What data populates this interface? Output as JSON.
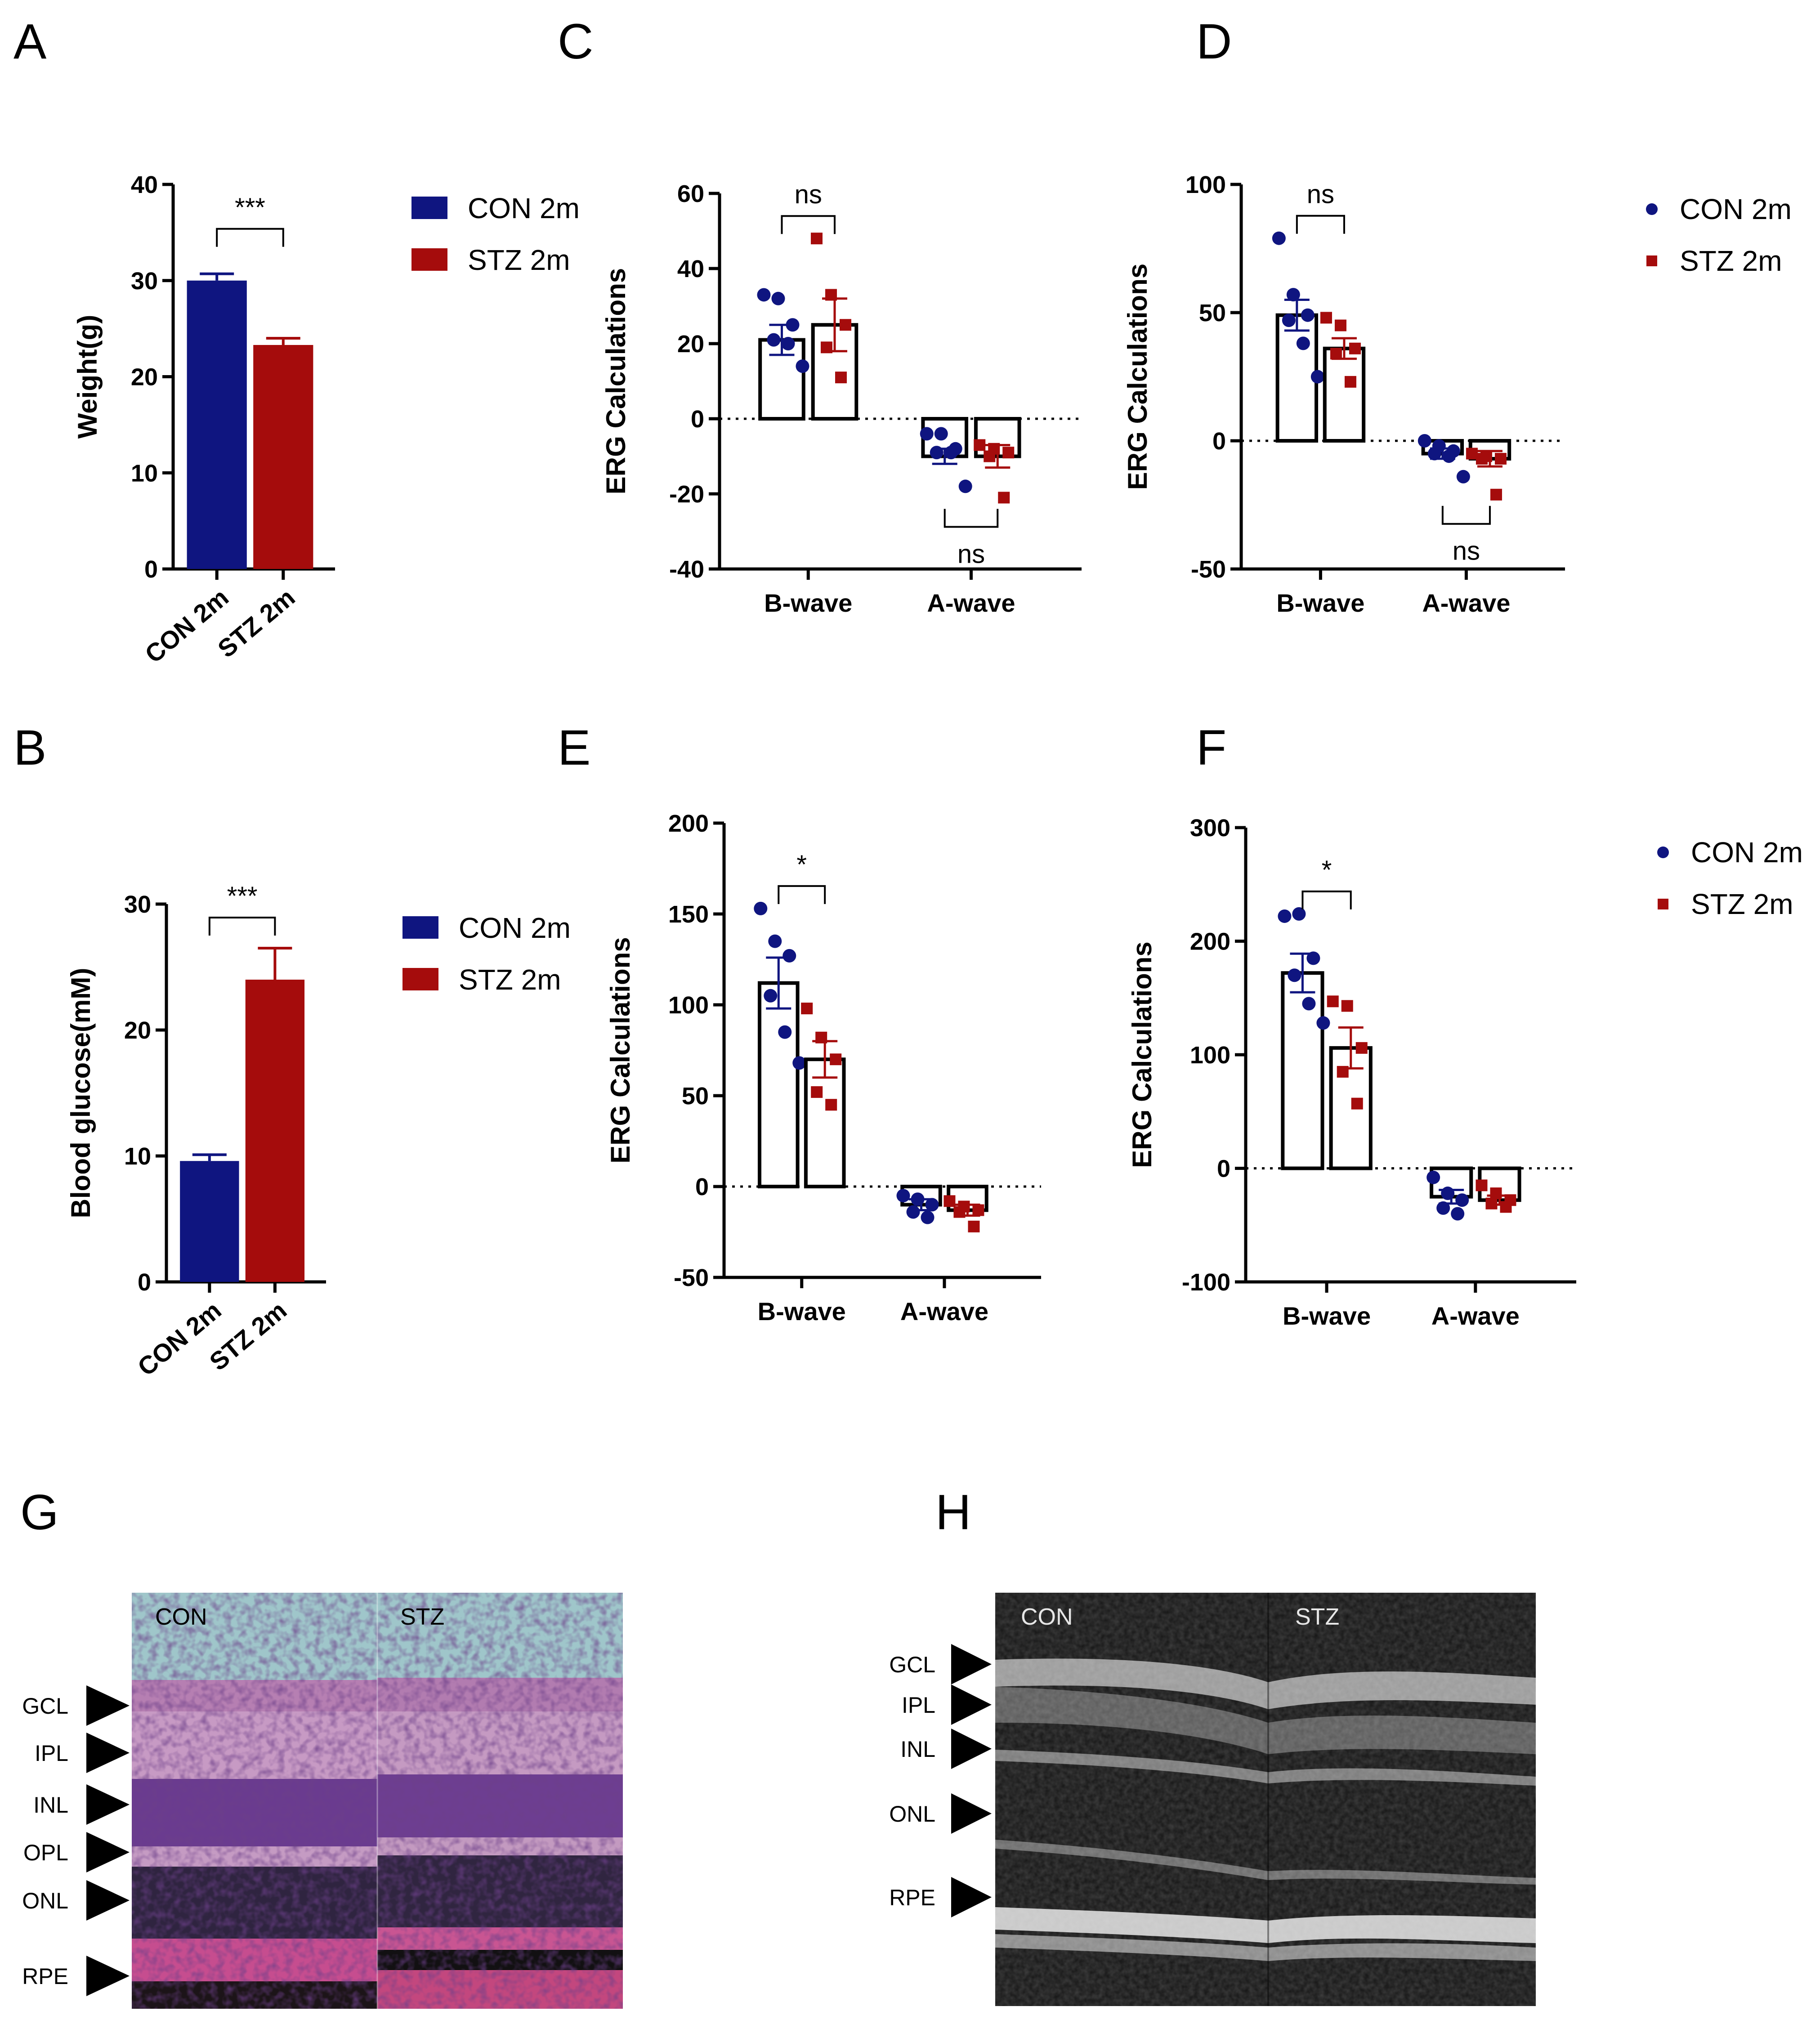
{
  "colors": {
    "con": "#0f1580",
    "stz": "#a50c0c",
    "axis": "#000000"
  },
  "legend_labels": {
    "con": "CON 2m",
    "stz": "STZ 2m"
  },
  "chart_data": [
    {
      "panel": "A",
      "type": "bar",
      "ylabel": "Weight(g)",
      "ylim": [
        0,
        40
      ],
      "yticks": [
        "0",
        "10",
        "20",
        "30",
        "40"
      ],
      "tick_values": [
        0,
        10,
        20,
        30,
        40
      ],
      "categories": [
        "CON 2m",
        "STZ 2m"
      ],
      "values": [
        30.0,
        23.3
      ],
      "errors": [
        0.7,
        0.7
      ],
      "significance": "***",
      "legend": [
        "CON 2m",
        "STZ 2m"
      ]
    },
    {
      "panel": "B",
      "type": "bar",
      "ylabel": "Blood glucose(mM)",
      "ylim": [
        0,
        30
      ],
      "yticks": [
        "0",
        "10",
        "20",
        "30"
      ],
      "tick_values": [
        0,
        10,
        20,
        30
      ],
      "categories": [
        "CON 2m",
        "STZ 2m"
      ],
      "values": [
        9.6,
        24.0
      ],
      "errors": [
        0.5,
        2.5
      ],
      "significance": "***",
      "legend": [
        "CON 2m",
        "STZ 2m"
      ]
    },
    {
      "panel": "C",
      "type": "bar",
      "ylabel": "ERG Calculations",
      "ylim": [
        -40,
        60
      ],
      "yticks": [
        "-40",
        "-20",
        "0",
        "20",
        "40",
        "60"
      ],
      "tick_values": [
        -40,
        -20,
        0,
        20,
        40,
        60
      ],
      "groups": [
        "B-wave",
        "A-wave"
      ],
      "series": [
        {
          "name": "CON 2m",
          "means": [
            21,
            -10
          ],
          "errors": [
            4,
            2
          ],
          "points": [
            [
              33,
              32,
              25,
              21,
              20,
              14
            ],
            [
              -4,
              -4,
              -8,
              -9,
              -9,
              -18
            ]
          ]
        },
        {
          "name": "STZ 2m",
          "means": [
            25,
            -10
          ],
          "errors": [
            7,
            3
          ],
          "points": [
            [
              48,
              33,
              25,
              19,
              11
            ],
            [
              -7,
              -8,
              -9,
              -10,
              -21
            ]
          ]
        }
      ],
      "significance": [
        "ns",
        "ns"
      ],
      "legend": []
    },
    {
      "panel": "D",
      "type": "bar",
      "ylabel": "ERG Calculations",
      "ylim": [
        -50,
        100
      ],
      "yticks": [
        "-50",
        "0",
        "50",
        "100"
      ],
      "tick_values": [
        -50,
        0,
        50,
        100
      ],
      "groups": [
        "B-wave",
        "A-wave"
      ],
      "series": [
        {
          "name": "CON 2m",
          "means": [
            49,
            -5
          ],
          "errors": [
            6,
            2
          ],
          "points": [
            [
              79,
              57,
              49,
              47,
              38,
              25
            ],
            [
              0,
              -2,
              -4,
              -5,
              -6,
              -14
            ]
          ]
        },
        {
          "name": "STZ 2m",
          "means": [
            36,
            -7
          ],
          "errors": [
            4,
            3
          ],
          "points": [
            [
              48,
              45,
              36,
              34,
              23
            ],
            [
              -5,
              -6,
              -7,
              -7,
              -21
            ]
          ]
        }
      ],
      "significance": [
        "ns",
        "ns"
      ],
      "legend": [
        "CON 2m",
        "STZ 2m"
      ]
    },
    {
      "panel": "E",
      "type": "bar",
      "ylabel": "ERG Calculations",
      "ylim": [
        -50,
        200
      ],
      "yticks": [
        "-50",
        "0",
        "50",
        "100",
        "150",
        "200"
      ],
      "tick_values": [
        -50,
        0,
        50,
        100,
        150,
        200
      ],
      "groups": [
        "B-wave",
        "A-wave"
      ],
      "series": [
        {
          "name": "CON 2m",
          "means": [
            112,
            -10
          ],
          "errors": [
            14,
            3
          ],
          "points": [
            [
              153,
              135,
              127,
              105,
              85,
              68
            ],
            [
              -5,
              -7,
              -10,
              -14,
              -17
            ]
          ]
        },
        {
          "name": "STZ 2m",
          "means": [
            70,
            -13
          ],
          "errors": [
            10,
            3
          ],
          "points": [
            [
              98,
              82,
              70,
              52,
              45
            ],
            [
              -8,
              -11,
              -13,
              -14,
              -22
            ]
          ]
        }
      ],
      "significance": [
        "*"
      ],
      "legend": []
    },
    {
      "panel": "F",
      "type": "bar",
      "ylabel": "ERG Calculations",
      "ylim": [
        -100,
        300
      ],
      "yticks": [
        "-100",
        "0",
        "100",
        "200",
        "300"
      ],
      "tick_values": [
        -100,
        0,
        100,
        200,
        300
      ],
      "groups": [
        "B-wave",
        "A-wave"
      ],
      "series": [
        {
          "name": "CON 2m",
          "means": [
            172,
            -25
          ],
          "errors": [
            17,
            6
          ],
          "points": [
            [
              222,
              224,
              185,
              170,
              145,
              128
            ],
            [
              -8,
              -22,
              -28,
              -35,
              -40
            ]
          ]
        },
        {
          "name": "STZ 2m",
          "means": [
            106,
            -28
          ],
          "errors": [
            18,
            4
          ],
          "points": [
            [
              147,
              143,
              106,
              85,
              57
            ],
            [
              -15,
              -22,
              -28,
              -31,
              -34
            ]
          ]
        }
      ],
      "significance": [
        "*"
      ],
      "legend": [
        "CON 2m",
        "STZ 2m"
      ]
    }
  ],
  "panel_letters": [
    "A",
    "B",
    "C",
    "D",
    "E",
    "F",
    "G",
    "H"
  ],
  "histology": {
    "letter": "G",
    "con_label": "CON",
    "stz_label": "STZ",
    "layers": [
      "GCL",
      "IPL",
      "INL",
      "OPL",
      "ONL",
      "RPE"
    ]
  },
  "oct": {
    "letter": "H",
    "con_label": "CON",
    "stz_label": "STZ",
    "layers": [
      "GCL",
      "IPL",
      "INL",
      "ONL",
      "RPE"
    ]
  }
}
